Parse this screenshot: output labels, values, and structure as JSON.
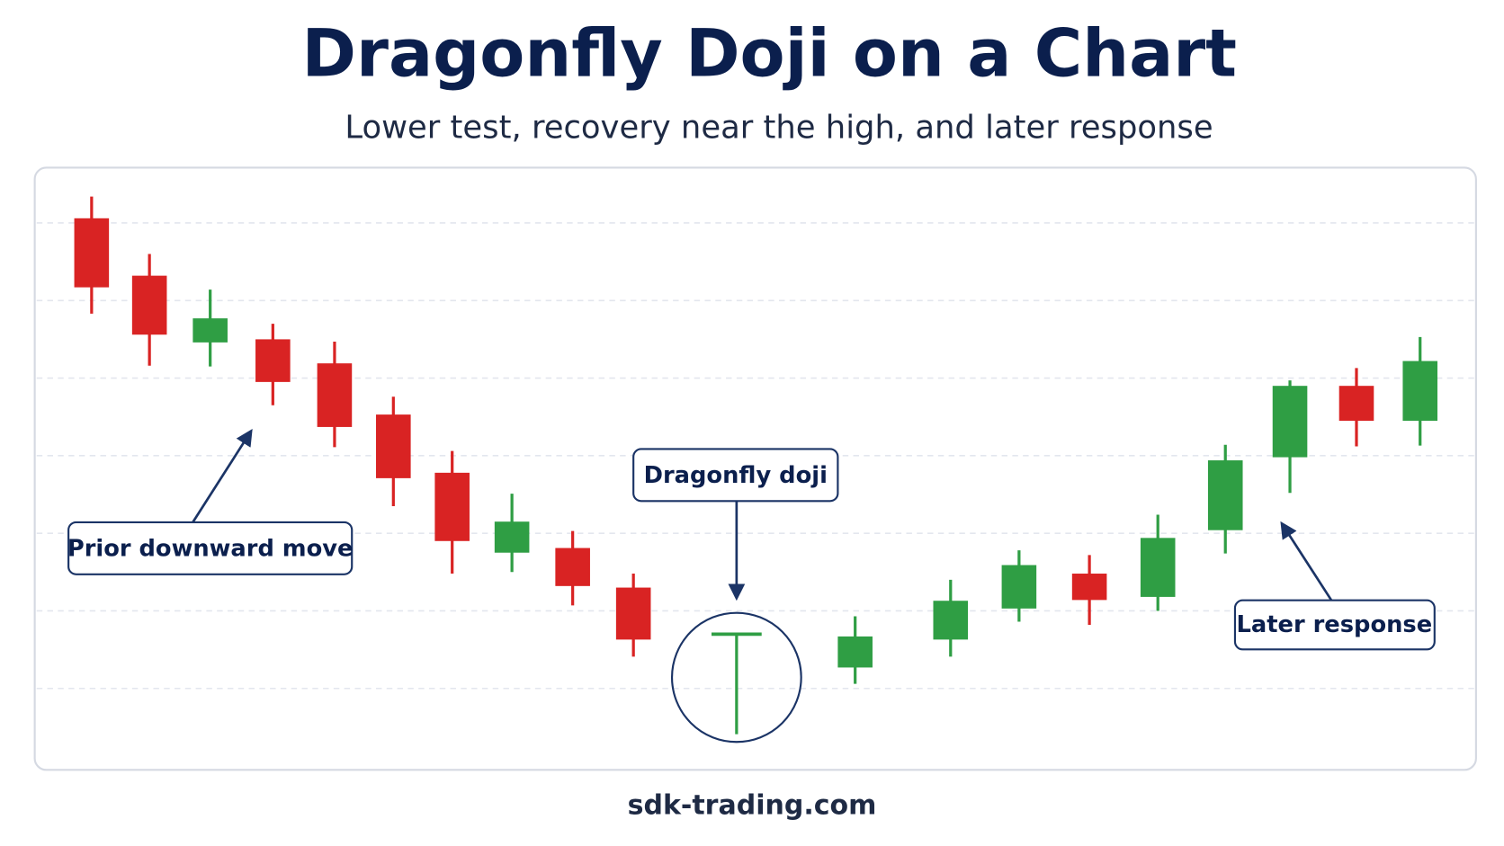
{
  "chart_data": {
    "type": "candlestick",
    "title": "Dragonfly Doji on a Chart",
    "subtitle": "Lower test, recovery near the high, and later response",
    "open": [
      7.06,
      6.32,
      5.46,
      5.5,
      5.19,
      4.53,
      3.78,
      2.75,
      2.81,
      2.3,
      1.7,
      1.27,
      1.63,
      2.03,
      2.48,
      2.18,
      3.04,
      3.98,
      4.9,
      4.45
    ],
    "high": [
      7.34,
      6.6,
      6.14,
      5.7,
      5.47,
      4.76,
      4.06,
      3.51,
      3.03,
      2.48,
      1.7,
      1.93,
      2.4,
      2.78,
      2.72,
      3.24,
      4.14,
      4.97,
      5.13,
      5.53
    ],
    "low": [
      5.83,
      5.16,
      5.15,
      4.65,
      4.11,
      3.35,
      2.48,
      2.5,
      2.07,
      1.41,
      0.41,
      1.06,
      1.41,
      1.86,
      1.82,
      2.0,
      2.74,
      3.52,
      4.12,
      4.13
    ],
    "close": [
      6.17,
      5.56,
      5.77,
      4.95,
      4.37,
      3.71,
      2.9,
      3.15,
      2.32,
      1.63,
      1.7,
      1.67,
      2.13,
      2.59,
      2.14,
      2.94,
      3.94,
      4.9,
      4.45,
      5.22
    ],
    "up_color": "#2f9e44",
    "down_color": "#d92323",
    "ylim": [
      0,
      7.7
    ],
    "yticks": [
      1,
      2,
      3,
      4,
      5,
      6,
      7
    ],
    "grid": true,
    "annotations": [
      "Prior downward move",
      "Dragonfly doji",
      "Later response"
    ],
    "footer": "sdk-trading.com"
  }
}
